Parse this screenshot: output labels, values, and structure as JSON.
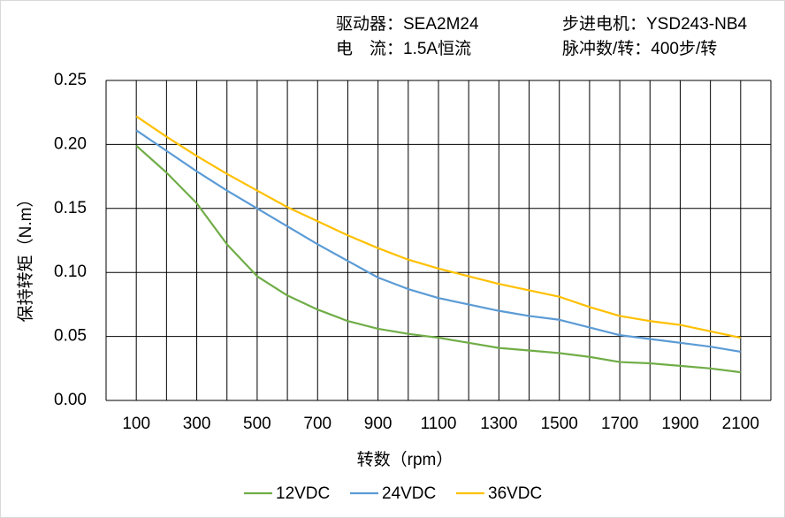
{
  "chart_data": {
    "type": "line",
    "info": [
      "驱动器：SEA2M24",
      "步进电机：YSD243-NB4",
      "电　流：1.5A恒流",
      "脉冲数/转：400步/转"
    ],
    "xlabel": "转数（rpm）",
    "ylabel": "保持转矩（N.m）",
    "x": [
      100,
      200,
      300,
      400,
      500,
      600,
      700,
      800,
      900,
      1000,
      1100,
      1200,
      1300,
      1400,
      1500,
      1600,
      1700,
      1800,
      1900,
      2000,
      2100
    ],
    "series": [
      {
        "name": "12VDC",
        "color": "#70ad47",
        "values": [
          0.199,
          0.178,
          0.154,
          0.122,
          0.097,
          0.082,
          0.071,
          0.062,
          0.056,
          0.052,
          0.049,
          0.045,
          0.041,
          0.039,
          0.037,
          0.034,
          0.03,
          0.029,
          0.027,
          0.025,
          0.022
        ]
      },
      {
        "name": "24VDC",
        "color": "#5b9bd5",
        "values": [
          0.211,
          0.195,
          0.179,
          0.164,
          0.15,
          0.136,
          0.122,
          0.109,
          0.096,
          0.087,
          0.08,
          0.075,
          0.07,
          0.066,
          0.063,
          0.057,
          0.051,
          0.048,
          0.045,
          0.042,
          0.038
        ]
      },
      {
        "name": "36VDC",
        "color": "#ffc000",
        "values": [
          0.222,
          0.206,
          0.191,
          0.177,
          0.164,
          0.151,
          0.14,
          0.129,
          0.119,
          0.11,
          0.103,
          0.097,
          0.091,
          0.086,
          0.081,
          0.073,
          0.066,
          0.062,
          0.059,
          0.054,
          0.049
        ]
      }
    ],
    "xlim": [
      0,
      2200
    ],
    "xticks": [
      100,
      300,
      500,
      700,
      900,
      1100,
      1300,
      1500,
      1700,
      1900,
      2100
    ],
    "xgrid": [
      0,
      100,
      200,
      300,
      400,
      500,
      600,
      700,
      800,
      900,
      1000,
      1100,
      1200,
      1300,
      1400,
      1500,
      1600,
      1700,
      1800,
      1900,
      2000,
      2100,
      2200
    ],
    "ylim": [
      0,
      0.25
    ],
    "yticks": [
      {
        "value": 0,
        "label": "0.00"
      },
      {
        "value": 0.05,
        "label": "0.05"
      },
      {
        "value": 0.1,
        "label": "0.10"
      },
      {
        "value": 0.15,
        "label": "0.15"
      },
      {
        "value": 0.2,
        "label": "0.20"
      },
      {
        "value": 0.25,
        "label": "0.25"
      }
    ],
    "grid": true,
    "legend": "bottom"
  }
}
